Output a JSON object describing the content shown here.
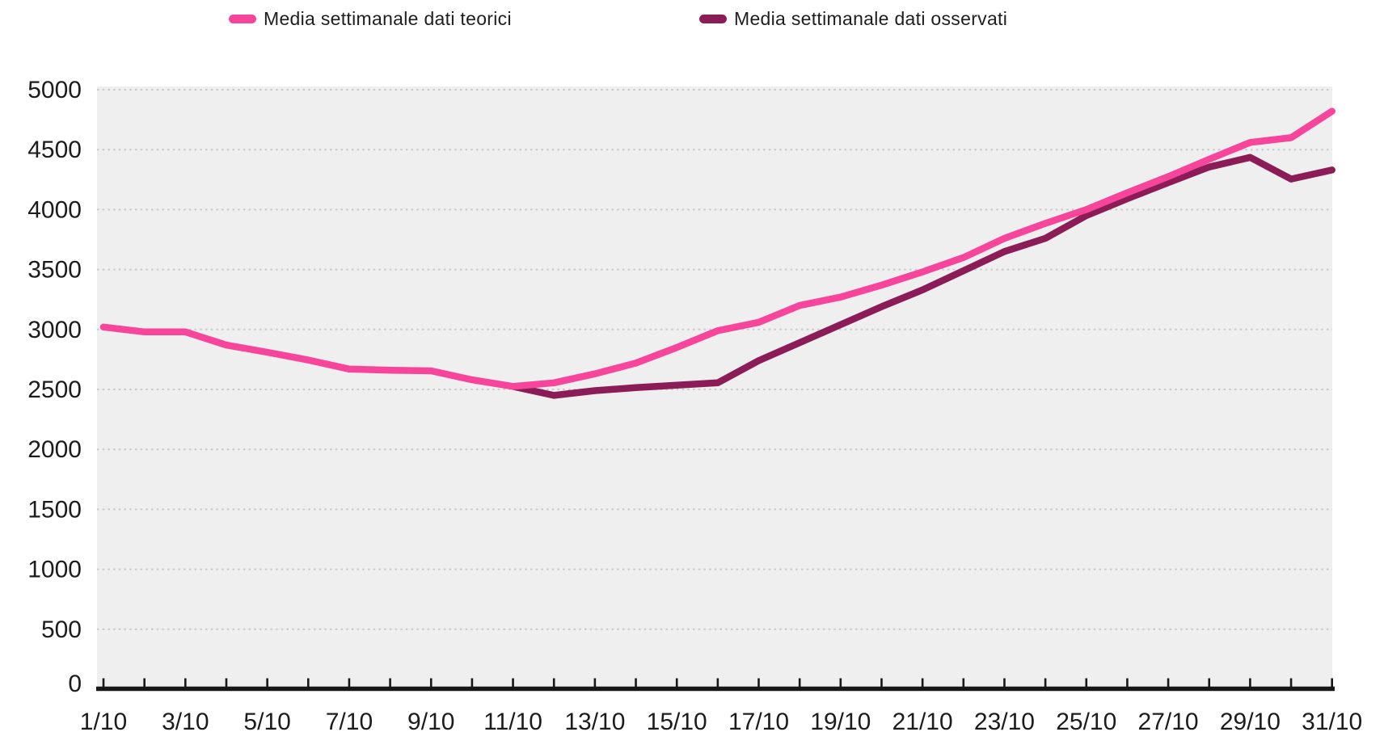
{
  "legend": {
    "items": [
      {
        "label": "Media settimanale dati teorici",
        "color": "#F8459C"
      },
      {
        "label": "Media settimanale dati osservati",
        "color": "#8C1C58"
      }
    ]
  },
  "colors": {
    "series_teorici": "#F8459C",
    "series_osservati": "#8C1C58",
    "plot_background": "#F0EFEF",
    "gridline": "#C9C9C9",
    "axis": "#171717",
    "label_text": "#1C1C1C"
  },
  "chart_data": {
    "type": "line",
    "title": "",
    "xlabel": "",
    "ylabel": "",
    "ylim": [
      0,
      5000
    ],
    "ytick_step": 500,
    "grid": "horizontal-dotted",
    "legend_position": "top",
    "categories": [
      "1/10",
      "2/10",
      "3/10",
      "4/10",
      "5/10",
      "6/10",
      "7/10",
      "8/10",
      "9/10",
      "10/10",
      "11/10",
      "12/10",
      "13/10",
      "14/10",
      "15/10",
      "16/10",
      "17/10",
      "18/10",
      "19/10",
      "20/10",
      "21/10",
      "22/10",
      "23/10",
      "24/10",
      "25/10",
      "26/10",
      "27/10",
      "28/10",
      "29/10",
      "30/10",
      "31/10"
    ],
    "labeled_days": [
      1,
      3,
      5,
      7,
      9,
      11,
      13,
      15,
      17,
      19,
      21,
      23,
      25,
      27,
      29,
      31
    ],
    "series": [
      {
        "name": "Media settimanale dati teorici",
        "color": "#F8459C",
        "start_day": 1,
        "values": [
          3020,
          2980,
          2980,
          2870,
          2810,
          2745,
          2670,
          2660,
          2655,
          2580,
          2525,
          2555,
          2630,
          2720,
          2850,
          2990,
          3060,
          3200,
          3270,
          3370,
          3480,
          3600,
          3760,
          3885,
          4000,
          4140,
          4275,
          4420,
          4560,
          4600,
          4820
        ]
      },
      {
        "name": "Media settimanale dati osservati",
        "color": "#8C1C58",
        "start_day": 11,
        "values": [
          2525,
          2450,
          2490,
          2515,
          2535,
          2555,
          2740,
          2890,
          3040,
          3190,
          3330,
          3490,
          3650,
          3760,
          3950,
          4090,
          4225,
          4355,
          4435,
          4255,
          4330
        ]
      }
    ]
  }
}
